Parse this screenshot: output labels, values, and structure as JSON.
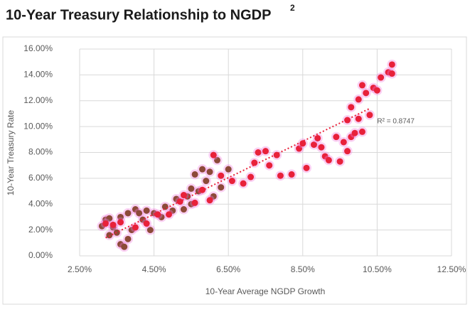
{
  "chart_data": {
    "type": "scatter",
    "title": "10-Year Treasury Relationship to NGDP",
    "title_note": "2",
    "x_label": "10-Year Average NGDP Growth",
    "y_label": "10-Year Treasury Rate",
    "xlim": [
      2.5,
      12.5
    ],
    "ylim": [
      0,
      16
    ],
    "xticks": [
      {
        "value": 2.5,
        "label": "2.50%"
      },
      {
        "value": 4.5,
        "label": "4.50%"
      },
      {
        "value": 6.5,
        "label": "6.50%"
      },
      {
        "value": 8.5,
        "label": "8.50%"
      },
      {
        "value": 10.5,
        "label": "10.50%"
      },
      {
        "value": 12.5,
        "label": "12.50%"
      }
    ],
    "yticks": [
      {
        "value": 0,
        "label": "0.00%"
      },
      {
        "value": 2,
        "label": "2.00%"
      },
      {
        "value": 4,
        "label": "4.00%"
      },
      {
        "value": 6,
        "label": "6.00%"
      },
      {
        "value": 8,
        "label": "8.00%"
      },
      {
        "value": 10,
        "label": "10.00%"
      },
      {
        "value": 12,
        "label": "12.00%"
      },
      {
        "value": 14,
        "label": "14.00%"
      },
      {
        "value": 16,
        "label": "16.00%"
      }
    ],
    "grid": true,
    "series": [
      {
        "color": "#8c4a38",
        "x": [
          3.1,
          3.2,
          3.3,
          3.4,
          3.5,
          3.6,
          3.7,
          3.8,
          3.9,
          3.6,
          3.8,
          4.0,
          4.1,
          4.2,
          4.4,
          4.5,
          4.7,
          4.8,
          5.0,
          5.1,
          5.3,
          5.5,
          5.5,
          5.6,
          5.7,
          5.8,
          5.9,
          6.0,
          6.1,
          6.2,
          6.3,
          6.5,
          5.4,
          4.3,
          3.3
        ],
        "values": [
          2.3,
          2.8,
          2.9,
          2.2,
          1.8,
          0.9,
          0.7,
          1.3,
          2.0,
          3.0,
          3.3,
          3.6,
          3.3,
          2.8,
          2.0,
          3.3,
          3.0,
          3.8,
          3.5,
          4.4,
          3.6,
          4.0,
          5.2,
          6.3,
          5.0,
          6.7,
          5.8,
          6.5,
          4.6,
          7.4,
          5.3,
          6.7,
          4.6,
          3.5,
          1.6
        ]
      },
      {
        "color": "#e8213a",
        "x": [
          3.2,
          3.4,
          3.6,
          4.0,
          4.3,
          4.6,
          4.9,
          5.2,
          5.3,
          5.6,
          5.8,
          6.0,
          6.1,
          6.3,
          6.6,
          6.9,
          7.1,
          7.2,
          7.3,
          7.5,
          7.6,
          7.8,
          7.9,
          8.2,
          8.4,
          8.5,
          8.6,
          8.8,
          8.9,
          9.0,
          9.1,
          9.2,
          9.4,
          9.5,
          9.6,
          9.7,
          9.8,
          9.9,
          10.0,
          9.8,
          10.0,
          10.1,
          10.2,
          10.3,
          10.4,
          10.5,
          10.6,
          10.8,
          10.9,
          10.9,
          9.7,
          10.1
        ],
        "values": [
          2.5,
          2.4,
          2.6,
          2.2,
          2.5,
          3.2,
          3.2,
          4.2,
          4.7,
          4.1,
          5.1,
          4.3,
          7.8,
          6.2,
          5.8,
          5.6,
          6.1,
          7.2,
          8.0,
          8.1,
          7.0,
          7.8,
          6.2,
          6.3,
          8.3,
          8.7,
          6.8,
          8.6,
          9.1,
          8.4,
          7.7,
          7.4,
          9.2,
          7.3,
          8.8,
          8.1,
          9.2,
          9.5,
          10.6,
          11.5,
          12.1,
          13.2,
          12.6,
          10.9,
          13.0,
          12.8,
          13.8,
          14.2,
          14.8,
          14.1,
          10.5,
          9.6
        ]
      }
    ],
    "trendline": {
      "color": "#e8213a",
      "x": [
        3.2,
        10.3
      ],
      "values": [
        1.4,
        11.4
      ]
    },
    "annotation": {
      "text": "R² = 0.8747",
      "x": 10.5,
      "y": 10.4
    }
  }
}
